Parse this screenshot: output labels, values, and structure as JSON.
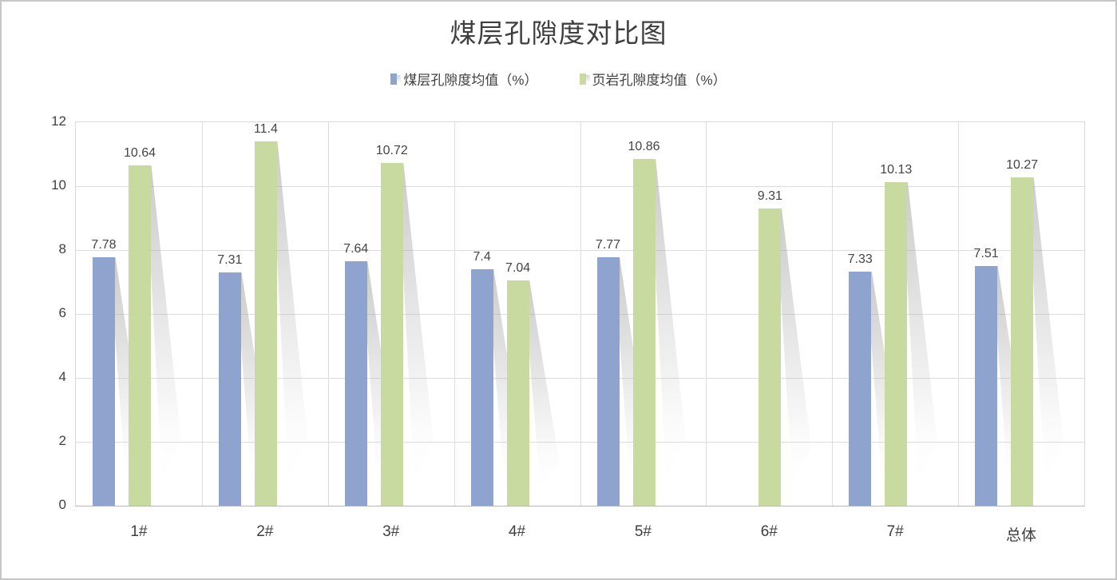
{
  "title": "煤层孔隙度对比图",
  "legend": [
    {
      "label": "煤层孔隙度均值（%）",
      "color": "#8EA4CE"
    },
    {
      "label": "页岩孔隙度均值（%）",
      "color": "#C9DAA0"
    }
  ],
  "chart_data": {
    "type": "bar",
    "title": "煤层孔隙度对比图",
    "categories": [
      "1#",
      "2#",
      "3#",
      "4#",
      "5#",
      "6#",
      "7#",
      "总体"
    ],
    "series": [
      {
        "name": "煤层孔隙度均值（%）",
        "color": "#8EA4CE",
        "values": [
          7.78,
          7.31,
          7.64,
          7.4,
          7.77,
          null,
          7.33,
          7.51
        ]
      },
      {
        "name": "页岩孔隙度均值（%）",
        "color": "#C9DAA0",
        "values": [
          10.64,
          11.4,
          10.72,
          7.04,
          10.86,
          9.31,
          10.13,
          10.27
        ]
      }
    ],
    "data_labels": true,
    "xlabel": "",
    "ylabel": "",
    "ylim": [
      0,
      12
    ],
    "yticks": [
      0,
      2,
      4,
      6,
      8,
      10,
      12
    ],
    "grid": true,
    "legend_position": "top",
    "bar_effect": "perspective-shadow"
  },
  "colors": {
    "grid": "#dcdcdc",
    "axis": "#b7b7b7",
    "text": "#3f3f3f",
    "frame": "#c6c6c6"
  }
}
